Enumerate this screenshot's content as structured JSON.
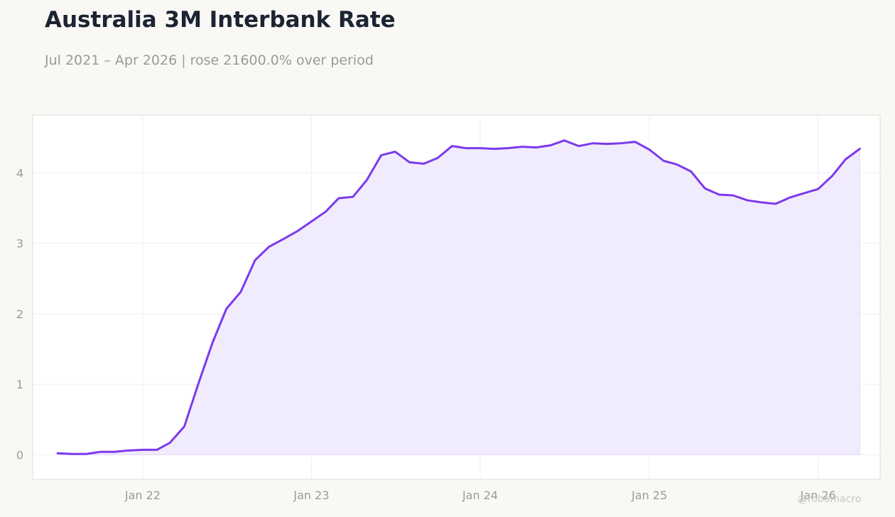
{
  "header": {
    "title": "Australia 3M Interbank Rate",
    "subtitle": "Jul 2021 – Apr 2026 | rose 21600.0% over period"
  },
  "watermark": "@robomacro",
  "colors": {
    "line": "#7c3aed",
    "fill": "#f1ecfd",
    "background": "#f9f8f5",
    "plot_background": "#ffffff",
    "title": "#1c2333",
    "muted_text": "#9a9a9a"
  },
  "chart_data": {
    "type": "area",
    "title": "Australia 3M Interbank Rate",
    "subtitle": "Jul 2021 – Apr 2026 | rose 21600.0% over period",
    "xlabel": "",
    "ylabel": "",
    "ylim": [
      -0.35,
      4.82
    ],
    "xlim": [
      "2021-05-08",
      "2026-05-15"
    ],
    "grid": true,
    "legend": "none",
    "x_ticks": [
      {
        "date": "2022-01-01",
        "label": "Jan 22"
      },
      {
        "date": "2023-01-01",
        "label": "Jan 23"
      },
      {
        "date": "2024-01-01",
        "label": "Jan 24"
      },
      {
        "date": "2025-01-01",
        "label": "Jan 25"
      },
      {
        "date": "2026-01-01",
        "label": "Jan 26"
      }
    ],
    "y_ticks": [
      0,
      1,
      2,
      3,
      4
    ],
    "series": [
      {
        "x": [
          "2021-07-01",
          "2021-08-01",
          "2021-09-01",
          "2021-10-01",
          "2021-11-01",
          "2021-12-01",
          "2022-01-01",
          "2022-02-01",
          "2022-03-01",
          "2022-04-01",
          "2022-05-01",
          "2022-06-01",
          "2022-07-01",
          "2022-08-01",
          "2022-09-01",
          "2022-10-01",
          "2022-11-01",
          "2022-12-01",
          "2023-01-01",
          "2023-02-01",
          "2023-03-01",
          "2023-04-01",
          "2023-05-01",
          "2023-06-01",
          "2023-07-01",
          "2023-08-01",
          "2023-09-01",
          "2023-10-01",
          "2023-11-01",
          "2023-12-01",
          "2024-01-01",
          "2024-02-01",
          "2024-03-01",
          "2024-04-01",
          "2024-05-01",
          "2024-06-01",
          "2024-07-01",
          "2024-08-01",
          "2024-09-01",
          "2024-10-01",
          "2024-11-01",
          "2024-12-01",
          "2025-01-01",
          "2025-02-01",
          "2025-03-01",
          "2025-04-01",
          "2025-05-01",
          "2025-06-01",
          "2025-07-01",
          "2025-08-01",
          "2025-09-01",
          "2025-10-01",
          "2025-11-01",
          "2025-12-01",
          "2026-01-01",
          "2026-02-01",
          "2026-03-01",
          "2026-04-01"
        ],
        "values": [
          0.02,
          0.01,
          0.01,
          0.04,
          0.04,
          0.06,
          0.07,
          0.07,
          0.17,
          0.4,
          1.0,
          1.59,
          2.07,
          2.31,
          2.76,
          2.95,
          3.06,
          3.17,
          3.31,
          3.45,
          3.64,
          3.66,
          3.9,
          4.25,
          4.3,
          4.15,
          4.13,
          4.21,
          4.38,
          4.35,
          4.35,
          4.34,
          4.35,
          4.37,
          4.36,
          4.39,
          4.46,
          4.38,
          4.42,
          4.41,
          4.42,
          4.44,
          4.33,
          4.17,
          4.12,
          4.02,
          3.78,
          3.69,
          3.68,
          3.61,
          3.58,
          3.56,
          3.65,
          3.71,
          3.77,
          3.96,
          4.19,
          4.34
        ]
      }
    ]
  }
}
